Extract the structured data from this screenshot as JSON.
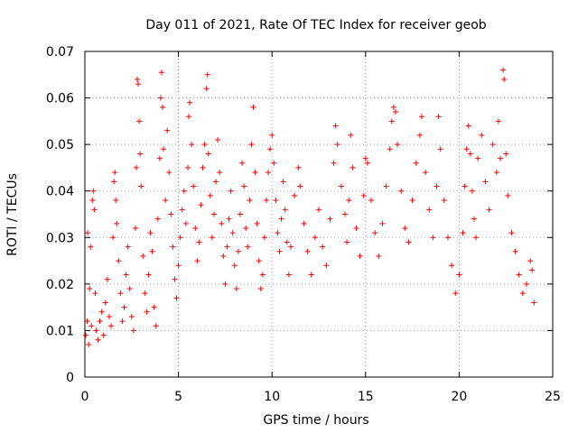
{
  "chart_data": {
    "type": "scatter",
    "title": "Day 011 of 2021, Rate Of TEC Index for receiver geob",
    "xlabel": "GPS time / hours",
    "ylabel": "ROTI / TECUs",
    "xlim": [
      0,
      25
    ],
    "ylim": [
      0,
      0.07
    ],
    "xticks": [
      0,
      5,
      10,
      15,
      20,
      25
    ],
    "xtick_labels": [
      "0",
      "5",
      "10",
      "15",
      "20",
      "25"
    ],
    "yticks": [
      0,
      0.01,
      0.02,
      0.03,
      0.04,
      0.05,
      0.06,
      0.07
    ],
    "ytick_labels": [
      "0",
      "0.01",
      "0.02",
      "0.03",
      "0.04",
      "0.05",
      "0.06",
      "0.07"
    ],
    "grid": true,
    "marker": "+",
    "marker_color": "#ff0000",
    "series": [
      {
        "name": "ROTI",
        "points": [
          [
            0.05,
            0.009
          ],
          [
            0.12,
            0.012
          ],
          [
            0.15,
            0.031
          ],
          [
            0.2,
            0.007
          ],
          [
            0.25,
            0.019
          ],
          [
            0.3,
            0.028
          ],
          [
            0.35,
            0.011
          ],
          [
            0.4,
            0.038
          ],
          [
            0.45,
            0.04
          ],
          [
            0.5,
            0.036
          ],
          [
            0.55,
            0.018
          ],
          [
            0.6,
            0.01
          ],
          [
            0.7,
            0.008
          ],
          [
            0.8,
            0.012
          ],
          [
            0.9,
            0.014
          ],
          [
            1.0,
            0.009
          ],
          [
            1.1,
            0.016
          ],
          [
            1.2,
            0.021
          ],
          [
            1.3,
            0.013
          ],
          [
            1.4,
            0.011
          ],
          [
            1.5,
            0.03
          ],
          [
            1.55,
            0.042
          ],
          [
            1.6,
            0.044
          ],
          [
            1.65,
            0.038
          ],
          [
            1.7,
            0.033
          ],
          [
            1.8,
            0.025
          ],
          [
            1.9,
            0.018
          ],
          [
            2.0,
            0.012
          ],
          [
            2.1,
            0.015
          ],
          [
            2.2,
            0.022
          ],
          [
            2.3,
            0.028
          ],
          [
            2.4,
            0.019
          ],
          [
            2.5,
            0.013
          ],
          [
            2.6,
            0.01
          ],
          [
            2.7,
            0.032
          ],
          [
            2.75,
            0.045
          ],
          [
            2.8,
            0.064
          ],
          [
            2.85,
            0.063
          ],
          [
            2.9,
            0.055
          ],
          [
            2.95,
            0.048
          ],
          [
            3.0,
            0.041
          ],
          [
            3.1,
            0.026
          ],
          [
            3.2,
            0.018
          ],
          [
            3.3,
            0.014
          ],
          [
            3.4,
            0.022
          ],
          [
            3.5,
            0.031
          ],
          [
            3.6,
            0.027
          ],
          [
            3.7,
            0.015
          ],
          [
            3.8,
            0.011
          ],
          [
            3.9,
            0.034
          ],
          [
            4.0,
            0.047
          ],
          [
            4.05,
            0.06
          ],
          [
            4.1,
            0.0655
          ],
          [
            4.15,
            0.058
          ],
          [
            4.2,
            0.049
          ],
          [
            4.3,
            0.038
          ],
          [
            4.4,
            0.053
          ],
          [
            4.5,
            0.044
          ],
          [
            4.6,
            0.035
          ],
          [
            4.7,
            0.028
          ],
          [
            4.8,
            0.021
          ],
          [
            4.9,
            0.017
          ],
          [
            5.0,
            0.024
          ],
          [
            5.1,
            0.03
          ],
          [
            5.2,
            0.036
          ],
          [
            5.3,
            0.04
          ],
          [
            5.4,
            0.033
          ],
          [
            5.5,
            0.045
          ],
          [
            5.55,
            0.056
          ],
          [
            5.6,
            0.059
          ],
          [
            5.7,
            0.05
          ],
          [
            5.8,
            0.041
          ],
          [
            5.9,
            0.032
          ],
          [
            6.0,
            0.025
          ],
          [
            6.1,
            0.029
          ],
          [
            6.2,
            0.037
          ],
          [
            6.3,
            0.045
          ],
          [
            6.4,
            0.05
          ],
          [
            6.5,
            0.062
          ],
          [
            6.55,
            0.065
          ],
          [
            6.6,
            0.048
          ],
          [
            6.7,
            0.039
          ],
          [
            6.8,
            0.03
          ],
          [
            6.9,
            0.035
          ],
          [
            7.0,
            0.042
          ],
          [
            7.1,
            0.051
          ],
          [
            7.2,
            0.044
          ],
          [
            7.3,
            0.033
          ],
          [
            7.4,
            0.026
          ],
          [
            7.5,
            0.02
          ],
          [
            7.6,
            0.028
          ],
          [
            7.7,
            0.034
          ],
          [
            7.8,
            0.04
          ],
          [
            7.9,
            0.031
          ],
          [
            8.0,
            0.024
          ],
          [
            8.1,
            0.019
          ],
          [
            8.2,
            0.027
          ],
          [
            8.3,
            0.035
          ],
          [
            8.4,
            0.046
          ],
          [
            8.5,
            0.041
          ],
          [
            8.6,
            0.032
          ],
          [
            8.7,
            0.028
          ],
          [
            8.8,
            0.038
          ],
          [
            8.9,
            0.05
          ],
          [
            9.0,
            0.058
          ],
          [
            9.1,
            0.044
          ],
          [
            9.2,
            0.033
          ],
          [
            9.3,
            0.025
          ],
          [
            9.4,
            0.019
          ],
          [
            9.5,
            0.022
          ],
          [
            9.6,
            0.03
          ],
          [
            9.7,
            0.038
          ],
          [
            9.8,
            0.044
          ],
          [
            9.9,
            0.049
          ],
          [
            10.0,
            0.052
          ],
          [
            10.1,
            0.046
          ],
          [
            10.2,
            0.038
          ],
          [
            10.3,
            0.031
          ],
          [
            10.4,
            0.027
          ],
          [
            10.5,
            0.034
          ],
          [
            10.6,
            0.042
          ],
          [
            10.7,
            0.036
          ],
          [
            10.8,
            0.029
          ],
          [
            10.9,
            0.022
          ],
          [
            11.0,
            0.028
          ],
          [
            11.2,
            0.039
          ],
          [
            11.4,
            0.045
          ],
          [
            11.5,
            0.041
          ],
          [
            11.7,
            0.033
          ],
          [
            11.9,
            0.027
          ],
          [
            12.1,
            0.022
          ],
          [
            12.3,
            0.03
          ],
          [
            12.5,
            0.036
          ],
          [
            12.7,
            0.028
          ],
          [
            12.9,
            0.024
          ],
          [
            13.1,
            0.034
          ],
          [
            13.3,
            0.046
          ],
          [
            13.4,
            0.054
          ],
          [
            13.5,
            0.05
          ],
          [
            13.7,
            0.041
          ],
          [
            13.9,
            0.035
          ],
          [
            14.0,
            0.029
          ],
          [
            14.1,
            0.038
          ],
          [
            14.2,
            0.052
          ],
          [
            14.3,
            0.045
          ],
          [
            14.5,
            0.032
          ],
          [
            14.7,
            0.026
          ],
          [
            14.9,
            0.039
          ],
          [
            15.0,
            0.047
          ],
          [
            15.1,
            0.046
          ],
          [
            15.3,
            0.038
          ],
          [
            15.5,
            0.031
          ],
          [
            15.7,
            0.026
          ],
          [
            15.9,
            0.033
          ],
          [
            16.1,
            0.041
          ],
          [
            16.3,
            0.049
          ],
          [
            16.4,
            0.055
          ],
          [
            16.5,
            0.058
          ],
          [
            16.6,
            0.057
          ],
          [
            16.7,
            0.05
          ],
          [
            16.9,
            0.04
          ],
          [
            17.1,
            0.032
          ],
          [
            17.3,
            0.029
          ],
          [
            17.5,
            0.038
          ],
          [
            17.7,
            0.046
          ],
          [
            17.9,
            0.052
          ],
          [
            18.0,
            0.056
          ],
          [
            18.2,
            0.044
          ],
          [
            18.4,
            0.036
          ],
          [
            18.6,
            0.03
          ],
          [
            18.8,
            0.041
          ],
          [
            18.9,
            0.056
          ],
          [
            19.0,
            0.049
          ],
          [
            19.2,
            0.038
          ],
          [
            19.4,
            0.03
          ],
          [
            19.6,
            0.024
          ],
          [
            19.8,
            0.018
          ],
          [
            20.0,
            0.022
          ],
          [
            20.2,
            0.031
          ],
          [
            20.3,
            0.041
          ],
          [
            20.4,
            0.049
          ],
          [
            20.5,
            0.054
          ],
          [
            20.6,
            0.048
          ],
          [
            20.7,
            0.04
          ],
          [
            20.8,
            0.034
          ],
          [
            20.9,
            0.03
          ],
          [
            21.0,
            0.047
          ],
          [
            21.2,
            0.052
          ],
          [
            21.4,
            0.042
          ],
          [
            21.6,
            0.036
          ],
          [
            21.8,
            0.05
          ],
          [
            22.0,
            0.044
          ],
          [
            22.1,
            0.055
          ],
          [
            22.2,
            0.047
          ],
          [
            22.35,
            0.066
          ],
          [
            22.4,
            0.064
          ],
          [
            22.5,
            0.048
          ],
          [
            22.6,
            0.039
          ],
          [
            22.8,
            0.031
          ],
          [
            23.0,
            0.027
          ],
          [
            23.2,
            0.022
          ],
          [
            23.4,
            0.018
          ],
          [
            23.6,
            0.02
          ],
          [
            23.8,
            0.025
          ],
          [
            23.9,
            0.023
          ],
          [
            24.0,
            0.016
          ]
        ]
      }
    ]
  }
}
